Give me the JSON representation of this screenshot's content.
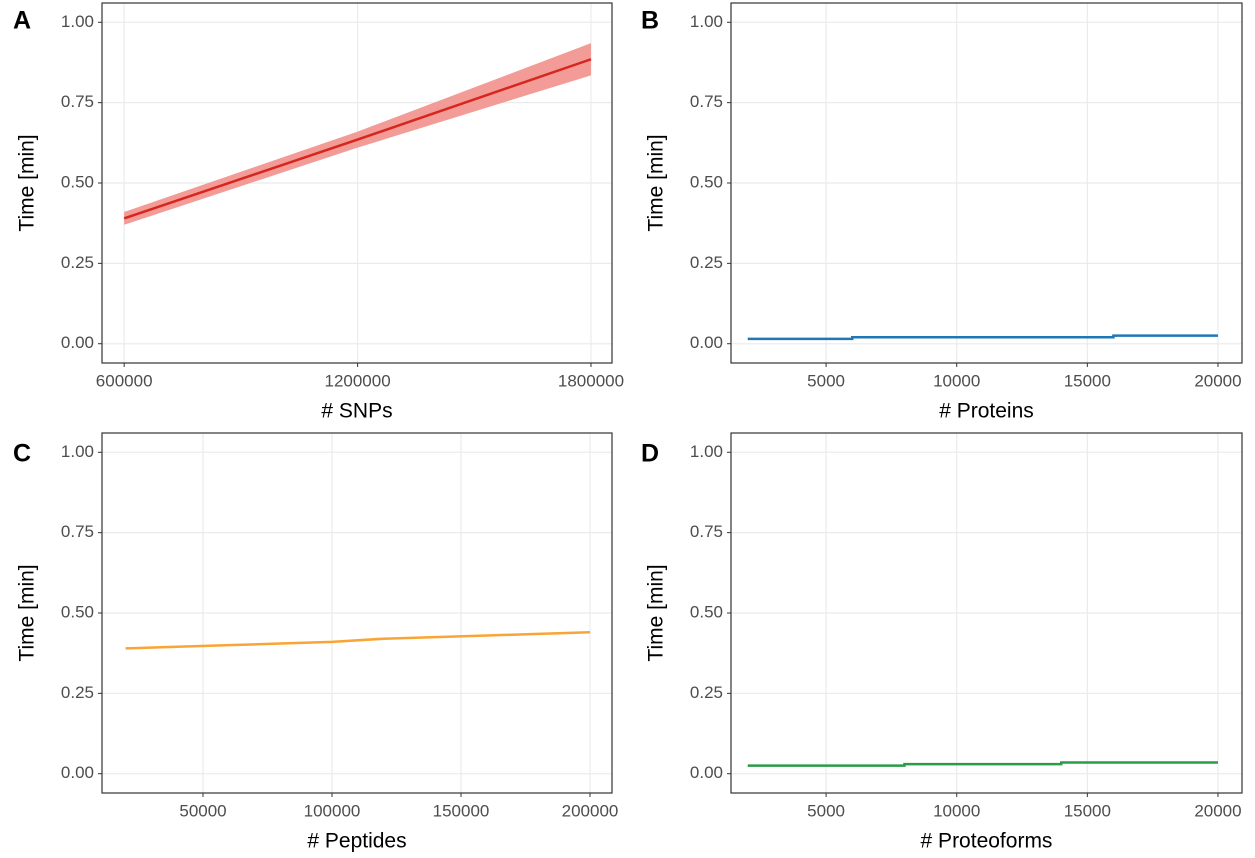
{
  "chart_data": [
    {
      "type": "line",
      "panel_label": "A",
      "x_label": "# SNPs",
      "y_label": "Time [min]",
      "x": [
        600000,
        1200000,
        1800000
      ],
      "values": [
        0.39,
        0.635,
        0.885
      ],
      "band_lower": [
        0.37,
        0.61,
        0.835
      ],
      "band_upper": [
        0.41,
        0.66,
        0.935
      ],
      "color": "#d7261e",
      "band_color": "#f29b97",
      "xlim": [
        543000,
        1854000
      ],
      "xticks": [
        600000,
        1200000,
        1800000
      ],
      "ylim": [
        -0.06,
        1.06
      ],
      "yticks": [
        {
          "value": 0,
          "label": "0.00"
        },
        {
          "value": 0.25,
          "label": "0.25"
        },
        {
          "value": 0.5,
          "label": "0.50"
        },
        {
          "value": 0.75,
          "label": "0.75"
        },
        {
          "value": 1,
          "label": "1.00"
        }
      ],
      "grid": true
    },
    {
      "type": "line",
      "panel_label": "B",
      "x_label": "# Proteins",
      "y_label": "Time [min]",
      "x": [
        2000,
        6000,
        6000,
        16000,
        16000,
        20000
      ],
      "values": [
        0.015,
        0.015,
        0.02,
        0.02,
        0.025,
        0.025
      ],
      "color": "#1f78b4",
      "xlim": [
        1360,
        20920
      ],
      "xticks": [
        5000,
        10000,
        15000,
        20000
      ],
      "ylim": [
        -0.06,
        1.06
      ],
      "yticks": [
        {
          "value": 0,
          "label": "0.00"
        },
        {
          "value": 0.25,
          "label": "0.25"
        },
        {
          "value": 0.5,
          "label": "0.50"
        },
        {
          "value": 0.75,
          "label": "0.75"
        },
        {
          "value": 1,
          "label": "1.00"
        }
      ],
      "grid": true
    },
    {
      "type": "line",
      "panel_label": "C",
      "x_label": "# Peptides",
      "y_label": "Time [min]",
      "x": [
        20000,
        40000,
        60000,
        80000,
        100000,
        120000,
        140000,
        160000,
        180000,
        200000
      ],
      "values": [
        0.39,
        0.395,
        0.4,
        0.405,
        0.41,
        0.42,
        0.425,
        0.43,
        0.435,
        0.44
      ],
      "color": "#f9a533",
      "xlim": [
        10850,
        208530
      ],
      "xticks": [
        50000,
        100000,
        150000,
        200000
      ],
      "ylim": [
        -0.06,
        1.06
      ],
      "yticks": [
        {
          "value": 0,
          "label": "0.00"
        },
        {
          "value": 0.25,
          "label": "0.25"
        },
        {
          "value": 0.5,
          "label": "0.50"
        },
        {
          "value": 0.75,
          "label": "0.75"
        },
        {
          "value": 1,
          "label": "1.00"
        }
      ],
      "grid": true
    },
    {
      "type": "line",
      "panel_label": "D",
      "x_label": "# Proteoforms",
      "y_label": "Time [min]",
      "x": [
        2000,
        8000,
        8000,
        14000,
        14000,
        20000
      ],
      "values": [
        0.025,
        0.025,
        0.03,
        0.03,
        0.035,
        0.035
      ],
      "color": "#2a9b48",
      "xlim": [
        1360,
        20920
      ],
      "xticks": [
        5000,
        10000,
        15000,
        20000
      ],
      "ylim": [
        -0.06,
        1.06
      ],
      "yticks": [
        {
          "value": 0,
          "label": "0.00"
        },
        {
          "value": 0.25,
          "label": "0.25"
        },
        {
          "value": 0.5,
          "label": "0.50"
        },
        {
          "value": 0.75,
          "label": "0.75"
        },
        {
          "value": 1,
          "label": "1.00"
        }
      ],
      "grid": true
    }
  ]
}
